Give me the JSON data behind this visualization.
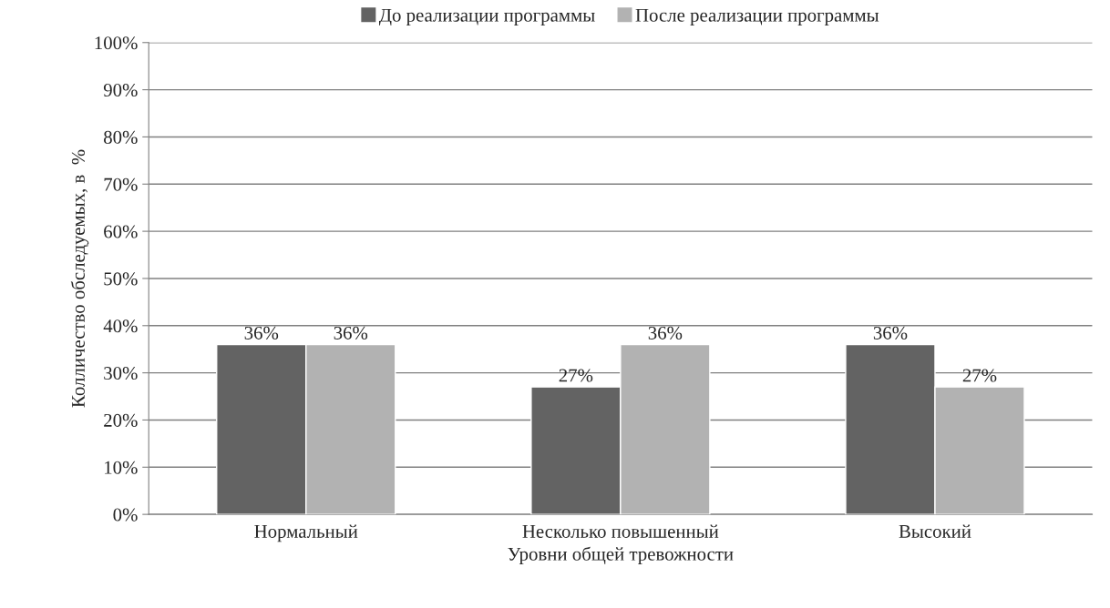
{
  "chart_data": {
    "type": "bar",
    "xlabel": "Уровни общей тревожности",
    "ylabel": "Колличество обследуемых, в  %",
    "categories": [
      "Нормальный",
      "Несколько повышенный",
      "Высокий"
    ],
    "series": [
      {
        "name": "До реализации программы",
        "color": "#636363",
        "values": [
          36,
          27,
          36
        ],
        "value_labels": [
          "36%",
          "27%",
          "36%"
        ]
      },
      {
        "name": "После реализации программы",
        "color": "#b2b2b2",
        "values": [
          36,
          36,
          27
        ],
        "value_labels": [
          "36%",
          "36%",
          "27%"
        ]
      }
    ],
    "ylim": [
      0,
      100
    ],
    "yticks": [
      {
        "value": 0,
        "label": "0%"
      },
      {
        "value": 10,
        "label": "10%"
      },
      {
        "value": 20,
        "label": "20%"
      },
      {
        "value": 30,
        "label": "30%"
      },
      {
        "value": 40,
        "label": "40%"
      },
      {
        "value": 50,
        "label": "50%"
      },
      {
        "value": 60,
        "label": "60%"
      },
      {
        "value": 70,
        "label": "70%"
      },
      {
        "value": 80,
        "label": "80%"
      },
      {
        "value": 90,
        "label": "90%"
      },
      {
        "value": 100,
        "label": "100%"
      }
    ],
    "grid": "y",
    "legend": "top"
  }
}
